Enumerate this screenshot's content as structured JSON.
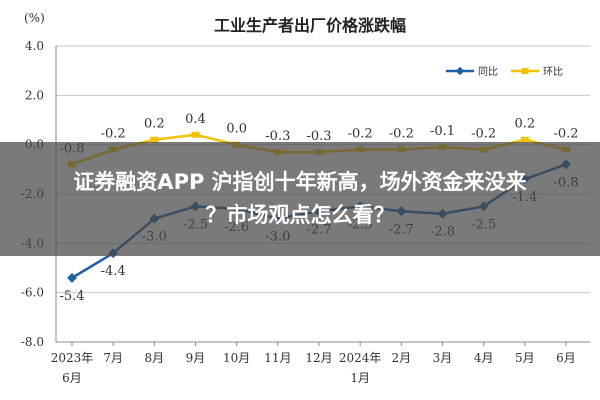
{
  "chart_data": {
    "type": "line",
    "title": "工业生产者出厂价格涨跌幅",
    "ylabel": "(%)",
    "ylim": [
      -8.0,
      4.0
    ],
    "yticks": [
      "4.0",
      "2.0",
      "0.0",
      "-2.0",
      "-4.0",
      "-6.0",
      "-8.0"
    ],
    "ytick_values": [
      4,
      2,
      0,
      -2,
      -4,
      -6,
      -8
    ],
    "categories": [
      {
        "l1": "2023年",
        "l2": "6月"
      },
      {
        "l1": "7月",
        "l2": ""
      },
      {
        "l1": "8月",
        "l2": ""
      },
      {
        "l1": "9月",
        "l2": ""
      },
      {
        "l1": "10月",
        "l2": ""
      },
      {
        "l1": "11月",
        "l2": ""
      },
      {
        "l1": "12月",
        "l2": ""
      },
      {
        "l1": "2024年",
        "l2": "1月"
      },
      {
        "l1": "2月",
        "l2": ""
      },
      {
        "l1": "3月",
        "l2": ""
      },
      {
        "l1": "4月",
        "l2": ""
      },
      {
        "l1": "5月",
        "l2": ""
      },
      {
        "l1": "6月",
        "l2": ""
      }
    ],
    "series": [
      {
        "name": "同比",
        "color": "#1f5fa8",
        "values": [
          -5.4,
          -4.4,
          -3.0,
          -2.5,
          -2.6,
          -3.0,
          -2.7,
          -2.5,
          -2.7,
          -2.8,
          -2.5,
          -1.4,
          -0.8
        ],
        "labels": [
          "-5.4",
          "-4.4",
          "-3.0",
          "-2.5",
          "-2.6",
          "-3.0",
          "-2.7",
          "-2.5",
          "-2.7",
          "-2.8",
          "-2.5",
          "-1.4",
          "-0.8"
        ]
      },
      {
        "name": "环比",
        "color": "#f2c200",
        "values": [
          -0.8,
          -0.2,
          0.2,
          0.4,
          0.0,
          -0.3,
          -0.3,
          -0.2,
          -0.2,
          -0.1,
          -0.2,
          0.2,
          -0.2
        ],
        "labels": [
          "-0.8",
          "-0.2",
          "0.2",
          "0.4",
          "0.0",
          "-0.3",
          "-0.3",
          "-0.2",
          "-0.2",
          "-0.1",
          "-0.2",
          "0.2",
          "-0.2"
        ]
      }
    ],
    "grid": true,
    "legend_position": "top-right"
  },
  "overlay": {
    "line1": "证券融资APP 沪指创十年新高，场外资金来没来",
    "line2": "？市场观点怎么看？"
  },
  "colors": {
    "grid": "#c8c8c8",
    "axis": "#888888",
    "text": "#333333"
  }
}
